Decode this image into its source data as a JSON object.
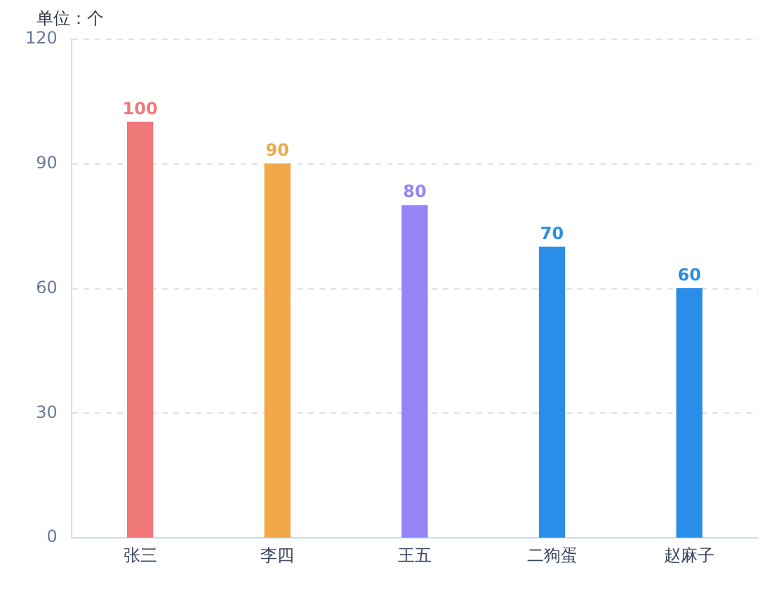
{
  "chart_data": {
    "type": "bar",
    "ylabel": "单位：个",
    "categories": [
      "张三",
      "李四",
      "王五",
      "二狗蛋",
      "赵麻子"
    ],
    "values": [
      100,
      90,
      80,
      70,
      60
    ],
    "colors": [
      "#f07878",
      "#f0a848",
      "#9484f8",
      "#2a8ee8",
      "#2a8ee8"
    ],
    "ylim": [
      0,
      120
    ],
    "yticks": [
      0,
      30,
      60,
      90,
      120
    ],
    "grid": "y",
    "data_labels": true
  }
}
